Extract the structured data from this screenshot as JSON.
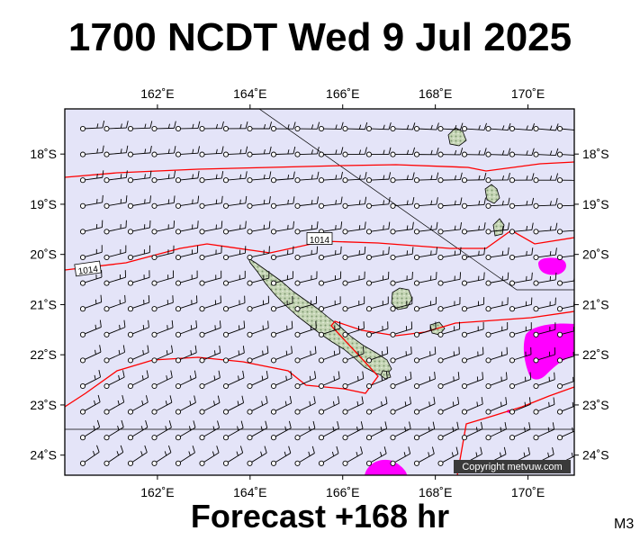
{
  "header": {
    "title": "1700 NCDT Wed 9 Jul 2025"
  },
  "footer": {
    "forecast": "Forecast +168 hr",
    "model_tag": "M3"
  },
  "map": {
    "lon_range": [
      160,
      171
    ],
    "lat_range": [
      -24.4,
      -17.1
    ],
    "lon_ticks": [
      {
        "value": 162,
        "label": "162˚E"
      },
      {
        "value": 164,
        "label": "164˚E"
      },
      {
        "value": 166,
        "label": "166˚E"
      },
      {
        "value": 168,
        "label": "168˚E"
      },
      {
        "value": 170,
        "label": "170˚E"
      }
    ],
    "lat_ticks": [
      {
        "value": -18,
        "label": "18˚S"
      },
      {
        "value": -19,
        "label": "19˚S"
      },
      {
        "value": -20,
        "label": "20˚S"
      },
      {
        "value": -21,
        "label": "21˚S"
      },
      {
        "value": -22,
        "label": "22˚S"
      },
      {
        "value": -23,
        "label": "23˚S"
      },
      {
        "value": -24,
        "label": "24˚S"
      }
    ],
    "isobar_labels": [
      {
        "text": "1014",
        "lon": 165.5,
        "lat": -19.7
      },
      {
        "text": "1014",
        "lon": 160.5,
        "lat": -20.3
      }
    ],
    "copyright": "Copyright metvuw.com",
    "colors": {
      "ocean": "#e4e4f8",
      "land": "#b8cca8",
      "isobar": "#ff0000",
      "rain": "#ff00ff",
      "barb": "#000000"
    }
  }
}
